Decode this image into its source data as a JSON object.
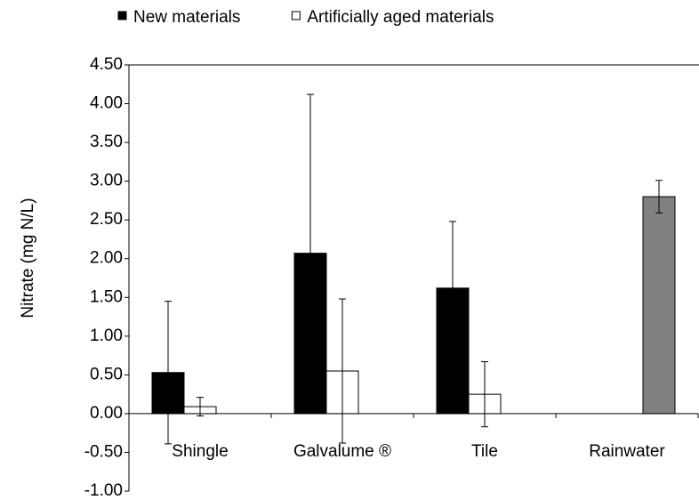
{
  "chart_data": {
    "type": "bar",
    "y_label": "Nitrate (mg N/L)",
    "categories": [
      "Shingle",
      "Galvalume ®",
      "Tile",
      "Rainwater"
    ],
    "series": [
      {
        "name": "New materials",
        "color": "#000000",
        "values": [
          0.53,
          2.07,
          1.62,
          null
        ],
        "errors": [
          0.92,
          2.05,
          0.86,
          null
        ]
      },
      {
        "name": "Artificially aged materials",
        "color": "#ffffff",
        "values": [
          0.09,
          0.55,
          0.25,
          null
        ],
        "errors": [
          0.12,
          0.93,
          0.42,
          null
        ]
      },
      {
        "color": "#808080",
        "values": [
          null,
          null,
          null,
          2.8
        ],
        "errors": [
          null,
          null,
          null,
          0.21
        ]
      }
    ],
    "ylim": [
      -1,
      4.5
    ],
    "yticks": [
      {
        "value": -1,
        "label": "-1.00"
      },
      {
        "value": -0.5,
        "label": "-0.50"
      },
      {
        "value": 0,
        "label": "0.00"
      },
      {
        "value": 0.5,
        "label": "0.50"
      },
      {
        "value": 1,
        "label": "1.00"
      },
      {
        "value": 1.5,
        "label": "1.50"
      },
      {
        "value": 2,
        "label": "2.00"
      },
      {
        "value": 2.5,
        "label": "2.50"
      },
      {
        "value": 3,
        "label": "3.00"
      },
      {
        "value": 3.5,
        "label": "3.50"
      },
      {
        "value": 4,
        "label": "4.00"
      },
      {
        "value": 4.5,
        "label": "4.50"
      }
    ],
    "legend": "top"
  }
}
